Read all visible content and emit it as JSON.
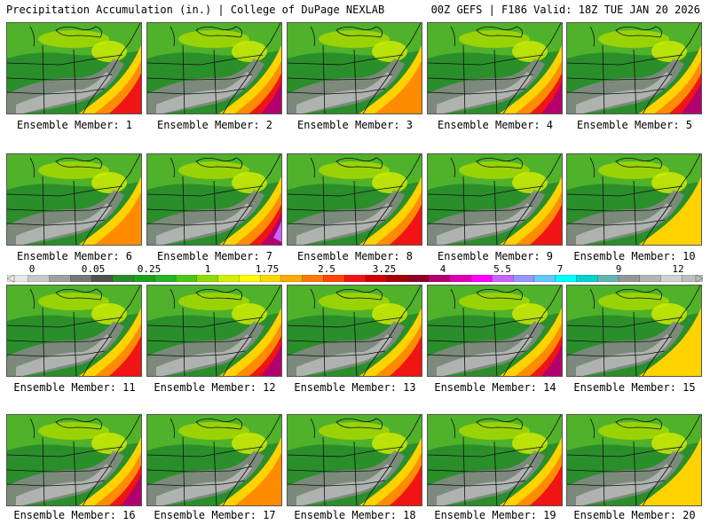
{
  "header": {
    "left": "Precipitation Accumulation (in.) | College of DuPage NEXLAB",
    "right": "00Z GEFS | F186 Valid: 18Z TUE JAN 20 2026"
  },
  "members": [
    {
      "label": "Ensemble Member: 1",
      "intensity": 3
    },
    {
      "label": "Ensemble Member: 2",
      "intensity": 4
    },
    {
      "label": "Ensemble Member: 3",
      "intensity": 2
    },
    {
      "label": "Ensemble Member: 4",
      "intensity": 4
    },
    {
      "label": "Ensemble Member: 5",
      "intensity": 4
    },
    {
      "label": "Ensemble Member: 6",
      "intensity": 2
    },
    {
      "label": "Ensemble Member: 7",
      "intensity": 5
    },
    {
      "label": "Ensemble Member: 8",
      "intensity": 3
    },
    {
      "label": "Ensemble Member: 9",
      "intensity": 3
    },
    {
      "label": "Ensemble Member: 10",
      "intensity": 1
    },
    {
      "label": "Ensemble Member: 11",
      "intensity": 3
    },
    {
      "label": "Ensemble Member: 12",
      "intensity": 4
    },
    {
      "label": "Ensemble Member: 13",
      "intensity": 3
    },
    {
      "label": "Ensemble Member: 14",
      "intensity": 4
    },
    {
      "label": "Ensemble Member: 15",
      "intensity": 1
    },
    {
      "label": "Ensemble Member: 16",
      "intensity": 4
    },
    {
      "label": "Ensemble Member: 17",
      "intensity": 2
    },
    {
      "label": "Ensemble Member: 18",
      "intensity": 3
    },
    {
      "label": "Ensemble Member: 19",
      "intensity": 3
    },
    {
      "label": "Ensemble Member: 20",
      "intensity": 1
    }
  ],
  "colorbar": {
    "labels": [
      "0",
      "0.05",
      "0.25",
      "1",
      "1.75",
      "2.5",
      "3.25",
      "4",
      "5.5",
      "7",
      "9",
      "12"
    ],
    "colors": [
      "#e8e8e8",
      "#c8c8c8",
      "#a0a0a0",
      "#787878",
      "#505050",
      "#2a8a2a",
      "#1ea01e",
      "#28b428",
      "#4cc814",
      "#90dc00",
      "#d2f000",
      "#ffff00",
      "#ffd700",
      "#ffaa00",
      "#ff7800",
      "#ff4600",
      "#f01414",
      "#d20000",
      "#a80000",
      "#8c0028",
      "#b4006e",
      "#dc00b4",
      "#ff00ff",
      "#c864ff",
      "#9696ff",
      "#64c8ff",
      "#00ffff",
      "#00d2d2",
      "#64b4b4",
      "#969696",
      "#b4b4b4",
      "#d2d2d2",
      "#bebebe"
    ]
  }
}
